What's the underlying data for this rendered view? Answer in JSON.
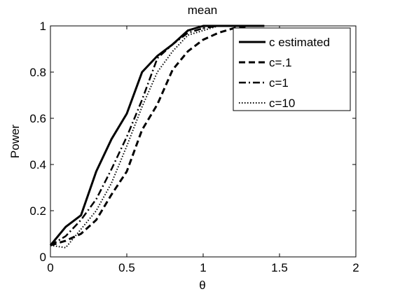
{
  "chart_data": {
    "type": "line",
    "title": "mean",
    "xlabel": "θ",
    "ylabel": "Power",
    "xlim": [
      0,
      2
    ],
    "ylim": [
      0,
      1
    ],
    "xticks": [
      "0",
      "0.5",
      "1",
      "1.5",
      "2"
    ],
    "yticks": [
      "0",
      "0.2",
      "0.4",
      "0.6",
      "0.8",
      "1"
    ],
    "grid": false,
    "legend_position": "top-right",
    "x": [
      0,
      0.1,
      0.2,
      0.3,
      0.4,
      0.5,
      0.6,
      0.7,
      0.8,
      0.9,
      1.0,
      1.1,
      1.2,
      1.3,
      1.4
    ],
    "series": [
      {
        "name": "c estimated",
        "style": "solid",
        "color": "#000000",
        "values": [
          0.05,
          0.13,
          0.18,
          0.37,
          0.51,
          0.62,
          0.8,
          0.87,
          0.92,
          0.98,
          1.0,
          1.0,
          1.0,
          1.0,
          1.0
        ]
      },
      {
        "name": "c=.1",
        "style": "dashed",
        "color": "#000000",
        "values": [
          0.05,
          0.07,
          0.1,
          0.16,
          0.27,
          0.37,
          0.55,
          0.66,
          0.81,
          0.89,
          0.94,
          0.97,
          0.99,
          1.0,
          1.0
        ]
      },
      {
        "name": "c=1",
        "style": "dashdot",
        "color": "#000000",
        "values": [
          0.05,
          0.09,
          0.16,
          0.25,
          0.38,
          0.52,
          0.68,
          0.86,
          0.92,
          0.97,
          0.99,
          1.0,
          1.0,
          1.0,
          1.0
        ]
      },
      {
        "name": "c=10",
        "style": "dotted",
        "color": "#000000",
        "values": [
          0.05,
          0.04,
          0.12,
          0.2,
          0.32,
          0.48,
          0.65,
          0.8,
          0.89,
          0.96,
          0.98,
          1.0,
          1.0,
          1.0,
          1.0
        ]
      }
    ]
  }
}
